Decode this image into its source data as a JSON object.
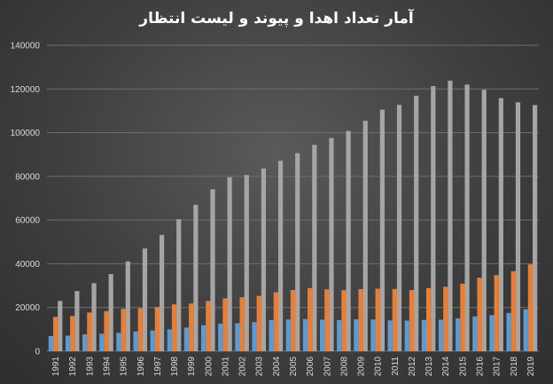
{
  "chart_data": {
    "type": "bar",
    "title": "آمار تعداد اهدا و پیوند و لیست انتظار",
    "xlabel": "",
    "ylabel": "",
    "ylim": [
      0,
      140000
    ],
    "yticks": [
      0,
      20000,
      40000,
      60000,
      80000,
      100000,
      120000,
      140000
    ],
    "grid": true,
    "legend": "none",
    "categories": [
      "1991",
      "1992",
      "1993",
      "1994",
      "1995",
      "1996",
      "1997",
      "1998",
      "1999",
      "2000",
      "2001",
      "2002",
      "2003",
      "2004",
      "2005",
      "2006",
      "2007",
      "2008",
      "2009",
      "2010",
      "2011",
      "2012",
      "2013",
      "2014",
      "2015",
      "2016",
      "2017",
      "2018",
      "2019"
    ],
    "series": [
      {
        "color": "#5b9bd5",
        "values": [
          6900,
          7100,
          7700,
          8000,
          8400,
          9000,
          9500,
          10000,
          10800,
          11900,
          12600,
          12800,
          13300,
          14200,
          14500,
          14700,
          14400,
          14200,
          14600,
          14500,
          14100,
          14000,
          14300,
          14400,
          15000,
          15900,
          16500,
          17500,
          19200
        ]
      },
      {
        "color": "#ed7d31",
        "values": [
          15700,
          16100,
          17700,
          18300,
          19400,
          19700,
          20200,
          21400,
          21800,
          23000,
          24200,
          24700,
          25300,
          27000,
          28000,
          28900,
          28300,
          27900,
          28400,
          28600,
          28500,
          28000,
          28900,
          29500,
          30900,
          33600,
          34800,
          36600,
          39700
        ]
      },
      {
        "color": "#a5a5a5",
        "values": [
          23000,
          27500,
          31100,
          35300,
          41100,
          47000,
          53200,
          60400,
          67000,
          74100,
          79600,
          80600,
          83600,
          87100,
          90600,
          94400,
          97500,
          100800,
          105400,
          110500,
          112700,
          116900,
          121300,
          123800,
          122000,
          119600,
          115800,
          113900,
          112600
        ]
      }
    ]
  }
}
